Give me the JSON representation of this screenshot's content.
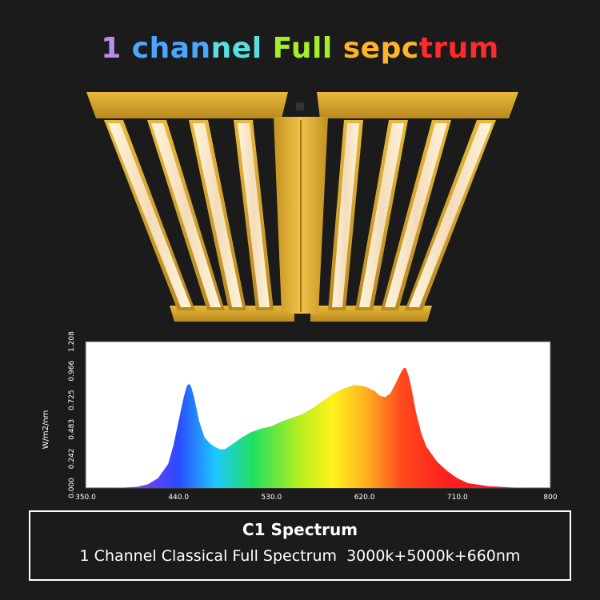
{
  "title": {
    "parts": [
      {
        "text": "1 ",
        "color": "#b98cf0"
      },
      {
        "text": "chan",
        "color": "#4aa6ff"
      },
      {
        "text": "nel ",
        "color": "#58e0e0"
      },
      {
        "text": "Full ",
        "color": "#a6ee2a"
      },
      {
        "text": "sepc",
        "color": "#ffb42a"
      },
      {
        "text": "trum",
        "color": "#ff2a2a"
      }
    ]
  },
  "colors": {
    "background": "#1b1b1b",
    "fixture_gold": "#d9a52a",
    "led_strip": "#f6e6c8",
    "chart_bg": "#ffffff"
  },
  "chart_data": {
    "type": "area",
    "xlabel": "",
    "ylabel": "W/m2/nm",
    "xlim": [
      350.0,
      800
    ],
    "ylim": [
      0.0,
      1.208
    ],
    "x_ticks": [
      "350.0",
      "440.0",
      "530.0",
      "620.0",
      "710.0",
      "800"
    ],
    "y_ticks": [
      "0.000",
      "0.242",
      "0.483",
      "0.725",
      "0.966",
      "1.208"
    ],
    "series": [
      {
        "x": [
          350,
          380,
          400,
          410,
          420,
          430,
          435,
          440,
          445,
          448,
          450,
          452,
          455,
          460,
          465,
          470,
          475,
          480,
          485,
          490,
          500,
          510,
          520,
          530,
          540,
          550,
          560,
          570,
          580,
          590,
          600,
          610,
          620,
          630,
          635,
          640,
          645,
          650,
          655,
          658,
          660,
          663,
          666,
          670,
          675,
          680,
          690,
          700,
          710,
          720,
          740,
          760,
          780,
          800
        ],
        "y": [
          0.0,
          0.0,
          0.01,
          0.03,
          0.08,
          0.2,
          0.35,
          0.55,
          0.75,
          0.84,
          0.86,
          0.84,
          0.75,
          0.55,
          0.42,
          0.37,
          0.34,
          0.32,
          0.32,
          0.35,
          0.41,
          0.46,
          0.49,
          0.51,
          0.55,
          0.58,
          0.61,
          0.66,
          0.72,
          0.78,
          0.82,
          0.85,
          0.84,
          0.8,
          0.76,
          0.75,
          0.78,
          0.86,
          0.95,
          0.99,
          0.99,
          0.92,
          0.8,
          0.62,
          0.45,
          0.34,
          0.22,
          0.14,
          0.08,
          0.04,
          0.015,
          0.005,
          0.0,
          0.0
        ]
      }
    ],
    "grid": false
  },
  "caption": {
    "title": "C1 Spectrum",
    "subtitle": "1 Channel Classical Full Spectrum  3000k+5000k+660nm"
  }
}
